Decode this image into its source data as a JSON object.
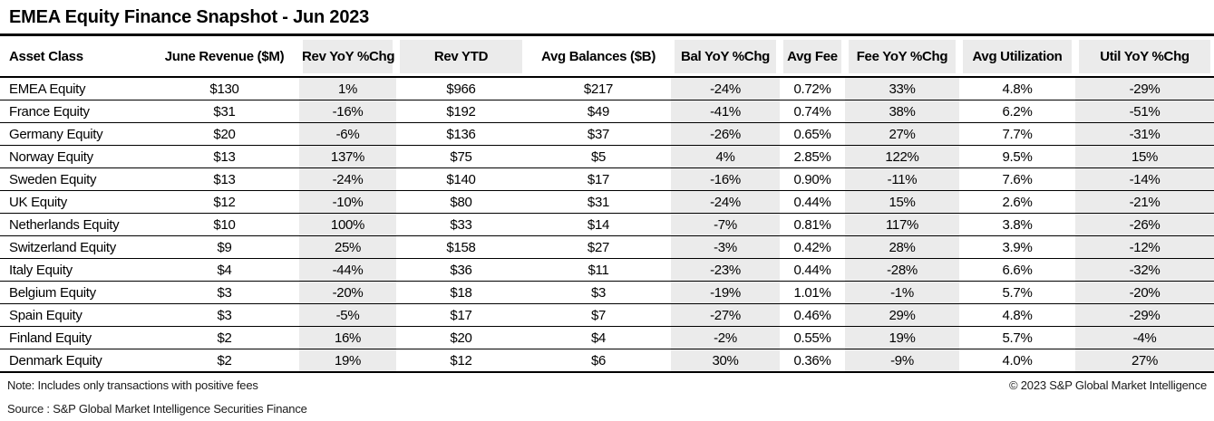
{
  "title": "EMEA Equity Finance Snapshot - Jun 2023",
  "chart_data": {
    "type": "table",
    "title": "EMEA Equity Finance Snapshot - Jun 2023",
    "columns": [
      {
        "label": "Asset Class",
        "header_shaded": false,
        "body_shaded": false
      },
      {
        "label": "June Revenue ($M)",
        "header_shaded": false,
        "body_shaded": false
      },
      {
        "label": "Rev YoY %Chg",
        "header_shaded": true,
        "body_shaded": true
      },
      {
        "label": "Rev YTD",
        "header_shaded": true,
        "body_shaded": false
      },
      {
        "label": "Avg Balances ($B)",
        "header_shaded": false,
        "body_shaded": false
      },
      {
        "label": "Bal YoY %Chg",
        "header_shaded": true,
        "body_shaded": true
      },
      {
        "label": "Avg Fee",
        "header_shaded": true,
        "body_shaded": false
      },
      {
        "label": "Fee YoY %Chg",
        "header_shaded": true,
        "body_shaded": true
      },
      {
        "label": "Avg Utilization",
        "header_shaded": true,
        "body_shaded": false
      },
      {
        "label": "Util YoY %Chg",
        "header_shaded": true,
        "body_shaded": true
      }
    ],
    "rows": [
      [
        "EMEA Equity",
        "$130",
        "1%",
        "$966",
        "$217",
        "-24%",
        "0.72%",
        "33%",
        "4.8%",
        "-29%"
      ],
      [
        "France Equity",
        "$31",
        "-16%",
        "$192",
        "$49",
        "-41%",
        "0.74%",
        "38%",
        "6.2%",
        "-51%"
      ],
      [
        "Germany Equity",
        "$20",
        "-6%",
        "$136",
        "$37",
        "-26%",
        "0.65%",
        "27%",
        "7.7%",
        "-31%"
      ],
      [
        "Norway Equity",
        "$13",
        "137%",
        "$75",
        "$5",
        "4%",
        "2.85%",
        "122%",
        "9.5%",
        "15%"
      ],
      [
        "Sweden Equity",
        "$13",
        "-24%",
        "$140",
        "$17",
        "-16%",
        "0.90%",
        "-11%",
        "7.6%",
        "-14%"
      ],
      [
        "UK Equity",
        "$12",
        "-10%",
        "$80",
        "$31",
        "-24%",
        "0.44%",
        "15%",
        "2.6%",
        "-21%"
      ],
      [
        "Netherlands Equity",
        "$10",
        "100%",
        "$33",
        "$14",
        "-7%",
        "0.81%",
        "117%",
        "3.8%",
        "-26%"
      ],
      [
        "Switzerland Equity",
        "$9",
        "25%",
        "$158",
        "$27",
        "-3%",
        "0.42%",
        "28%",
        "3.9%",
        "-12%"
      ],
      [
        "Italy Equity",
        "$4",
        "-44%",
        "$36",
        "$11",
        "-23%",
        "0.44%",
        "-28%",
        "6.6%",
        "-32%"
      ],
      [
        "Belgium Equity",
        "$3",
        "-20%",
        "$18",
        "$3",
        "-19%",
        "1.01%",
        "-1%",
        "5.7%",
        "-20%"
      ],
      [
        "Spain Equity",
        "$3",
        "-5%",
        "$17",
        "$7",
        "-27%",
        "0.46%",
        "29%",
        "4.8%",
        "-29%"
      ],
      [
        "Finland Equity",
        "$2",
        "16%",
        "$20",
        "$4",
        "-2%",
        "0.55%",
        "19%",
        "5.7%",
        "-4%"
      ],
      [
        "Denmark Equity",
        "$2",
        "19%",
        "$12",
        "$6",
        "30%",
        "0.36%",
        "-9%",
        "4.0%",
        "27%"
      ]
    ]
  },
  "footer": {
    "note": "Note: Includes only transactions with positive fees",
    "source": "Source : S&P Global Market Intelligence Securities Finance",
    "copyright": "© 2023 S&P Global Market Intelligence"
  },
  "colors": {
    "shaded_column": "#ebebeb",
    "text": "#000000",
    "border": "#000000",
    "background": "#ffffff"
  }
}
